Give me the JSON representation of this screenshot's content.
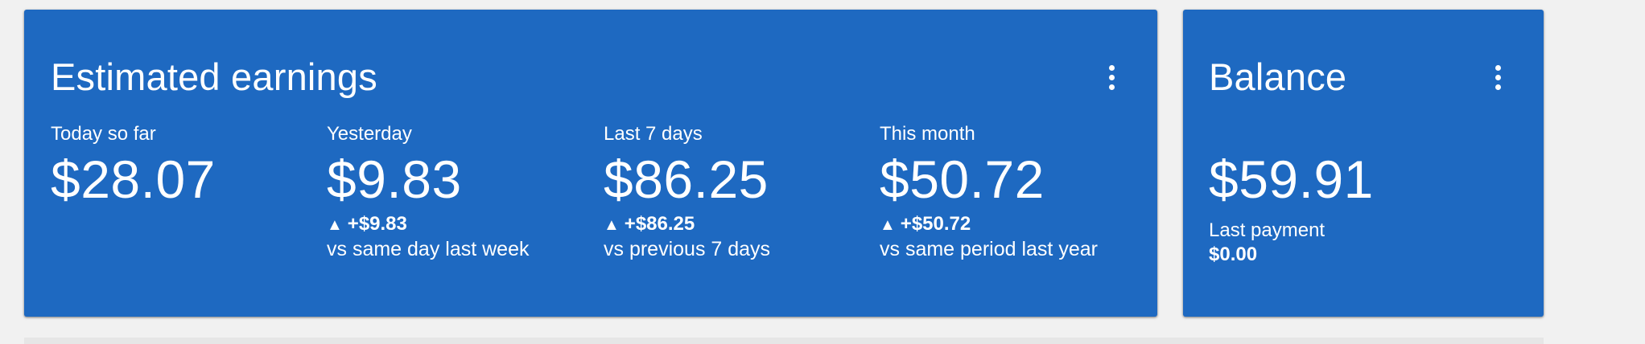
{
  "colors": {
    "card_background": "#1e69c1",
    "page_background": "#f1f1f1",
    "text": "#ffffff"
  },
  "earnings": {
    "title": "Estimated earnings",
    "menu_icon": "more-vert-icon",
    "metrics": [
      {
        "label": "Today so far",
        "value": "$28.07",
        "delta": "",
        "compare": ""
      },
      {
        "label": "Yesterday",
        "value": "$9.83",
        "delta": "+$9.83",
        "compare": "vs same day last week"
      },
      {
        "label": "Last 7 days",
        "value": "$86.25",
        "delta": "+$86.25",
        "compare": "vs previous 7 days"
      },
      {
        "label": "This month",
        "value": "$50.72",
        "delta": "+$50.72",
        "compare": "vs same period last year"
      }
    ],
    "up_arrow_glyph": "▲"
  },
  "balance": {
    "title": "Balance",
    "menu_icon": "more-vert-icon",
    "value": "$59.91",
    "last_payment_label": "Last payment",
    "last_payment_value": "$0.00"
  }
}
